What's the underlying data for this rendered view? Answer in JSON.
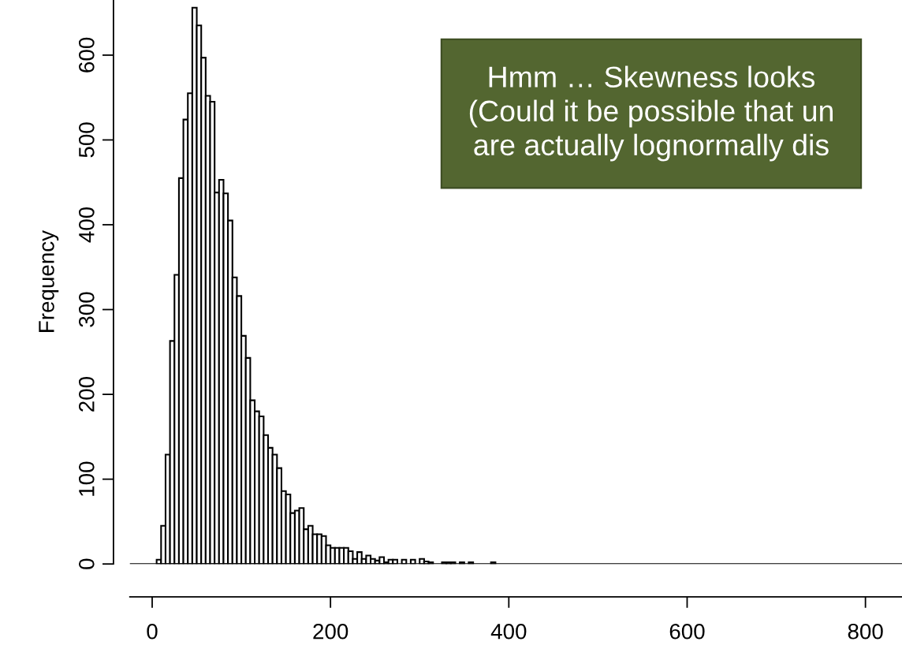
{
  "chart_data": {
    "type": "histogram",
    "ylabel": "Frequency",
    "bins": [
      0,
      5,
      10,
      15,
      20,
      25,
      30,
      35,
      40,
      45,
      50,
      55,
      60,
      65,
      70,
      75,
      80,
      85,
      90,
      95,
      100,
      105,
      110,
      115,
      120,
      125,
      130,
      135,
      140,
      145,
      150,
      155,
      160,
      165,
      170,
      175,
      180,
      185,
      190,
      195,
      200,
      205,
      210,
      215,
      220,
      225,
      230,
      235,
      240,
      245,
      250,
      255,
      260,
      265,
      270,
      275,
      280,
      285,
      290,
      295,
      300,
      305,
      310,
      315,
      320,
      325,
      330,
      335,
      340,
      345,
      350,
      355,
      360,
      365,
      370,
      375,
      380,
      385,
      390,
      395,
      400,
      405,
      410,
      415,
      420,
      425,
      430,
      435,
      440,
      445,
      450,
      455,
      460,
      465,
      470,
      475,
      480,
      485,
      490,
      495,
      500,
      505,
      510,
      515,
      520,
      525,
      530,
      535,
      540,
      545,
      550,
      555,
      560,
      565,
      570,
      575,
      580,
      585,
      590,
      595,
      600,
      605,
      610,
      615,
      620,
      625,
      630,
      635,
      640,
      645,
      650,
      655,
      660,
      665,
      670,
      675,
      680,
      685,
      690,
      695,
      700,
      705,
      710,
      715,
      720,
      725,
      730,
      735,
      740,
      745,
      750,
      755,
      760,
      765,
      770,
      775,
      780,
      785,
      790,
      795,
      800,
      805,
      810,
      815,
      820,
      825,
      830,
      835,
      840
    ],
    "values": [
      0,
      5,
      45,
      129,
      263,
      341,
      455,
      524,
      555,
      656,
      635,
      597,
      552,
      545,
      438,
      453,
      437,
      405,
      338,
      316,
      269,
      243,
      193,
      180,
      174,
      152,
      137,
      129,
      113,
      86,
      82,
      60,
      63,
      66,
      41,
      45,
      35,
      35,
      33,
      22,
      19,
      19,
      19,
      19,
      15,
      6,
      14,
      6,
      10,
      6,
      4,
      8,
      2,
      5,
      5,
      null,
      5,
      null,
      5,
      null,
      6,
      3,
      2,
      0,
      0,
      2,
      2,
      2,
      null,
      2,
      null,
      2,
      0,
      0,
      0,
      0,
      2,
      0,
      0,
      0,
      0,
      0,
      0,
      0,
      0,
      0,
      0,
      0,
      0,
      0,
      0,
      0,
      0,
      0,
      0,
      0,
      0,
      0,
      0,
      0,
      0,
      0,
      0,
      0,
      0,
      0,
      0,
      0,
      0,
      0,
      0,
      0,
      0,
      0,
      0,
      0,
      0,
      0,
      0,
      0,
      0,
      0,
      0,
      0,
      0,
      0,
      0,
      0,
      0,
      0,
      0,
      0,
      0,
      0,
      0,
      0,
      0,
      0,
      0,
      0,
      0,
      0,
      0,
      0,
      0,
      0,
      0,
      0,
      0,
      0,
      0,
      0,
      0,
      0,
      0,
      0,
      0,
      0,
      0,
      0,
      0,
      0,
      0,
      0,
      0,
      0,
      0,
      0
    ],
    "color": "#ffffff",
    "xlim": [
      -25,
      841
    ],
    "ylim": [
      0,
      665
    ],
    "xticks": [
      0,
      200,
      400,
      600,
      800
    ],
    "yticks": [
      0,
      100,
      200,
      300,
      400,
      500,
      600
    ],
    "grid": false,
    "annotations": [
      "Hmm … Skewness looks\n(Could it be possible that un\nare actually lognormally dis"
    ]
  }
}
